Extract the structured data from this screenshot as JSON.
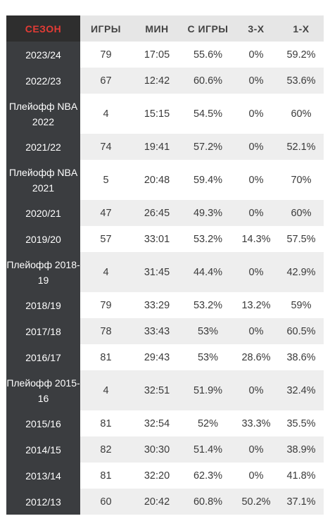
{
  "headers": [
    "СЕЗОН",
    "ИГРЫ",
    "МИН",
    "С ИГРЫ",
    "3-Х",
    "1-Х"
  ],
  "rows": [
    {
      "season": "2023/24",
      "games": "79",
      "min": "17:05",
      "fg": "55.6%",
      "three": "0%",
      "ft": "59.2%"
    },
    {
      "season": "2022/23",
      "games": "67",
      "min": "12:42",
      "fg": "60.6%",
      "three": "0%",
      "ft": "53.6%"
    },
    {
      "season": "Плейофф NBA 2022",
      "games": "4",
      "min": "15:15",
      "fg": "54.5%",
      "three": "0%",
      "ft": "60%"
    },
    {
      "season": "2021/22",
      "games": "74",
      "min": "19:41",
      "fg": "57.2%",
      "three": "0%",
      "ft": "52.1%"
    },
    {
      "season": "Плейофф NBA 2021",
      "games": "5",
      "min": "20:48",
      "fg": "59.4%",
      "three": "0%",
      "ft": "70%"
    },
    {
      "season": "2020/21",
      "games": "47",
      "min": "26:45",
      "fg": "49.3%",
      "three": "0%",
      "ft": "60%"
    },
    {
      "season": "2019/20",
      "games": "57",
      "min": "33:01",
      "fg": "53.2%",
      "three": "14.3%",
      "ft": "57.5%"
    },
    {
      "season": "Плейофф 2018-19",
      "games": "4",
      "min": "31:45",
      "fg": "44.4%",
      "three": "0%",
      "ft": "42.9%"
    },
    {
      "season": "2018/19",
      "games": "79",
      "min": "33:29",
      "fg": "53.2%",
      "three": "13.2%",
      "ft": "59%"
    },
    {
      "season": "2017/18",
      "games": "78",
      "min": "33:43",
      "fg": "53%",
      "three": "0%",
      "ft": "60.5%"
    },
    {
      "season": "2016/17",
      "games": "81",
      "min": "29:43",
      "fg": "53%",
      "three": "28.6%",
      "ft": "38.6%"
    },
    {
      "season": "Плейофф 2015-16",
      "games": "4",
      "min": "32:51",
      "fg": "51.9%",
      "three": "0%",
      "ft": "32.4%"
    },
    {
      "season": "2015/16",
      "games": "81",
      "min": "32:54",
      "fg": "52%",
      "three": "33.3%",
      "ft": "35.5%"
    },
    {
      "season": "2014/15",
      "games": "82",
      "min": "30:30",
      "fg": "51.4%",
      "three": "0%",
      "ft": "38.9%"
    },
    {
      "season": "2013/14",
      "games": "81",
      "min": "32:20",
      "fg": "62.3%",
      "three": "0%",
      "ft": "41.8%"
    },
    {
      "season": "2012/13",
      "games": "60",
      "min": "20:42",
      "fg": "60.8%",
      "three": "50.2%",
      "ft": "37.1%"
    }
  ],
  "colors": {
    "season_header_text": "#e33b35",
    "season_cell_bg": "#3b3d40",
    "header_bg": "#e6e6e6"
  }
}
